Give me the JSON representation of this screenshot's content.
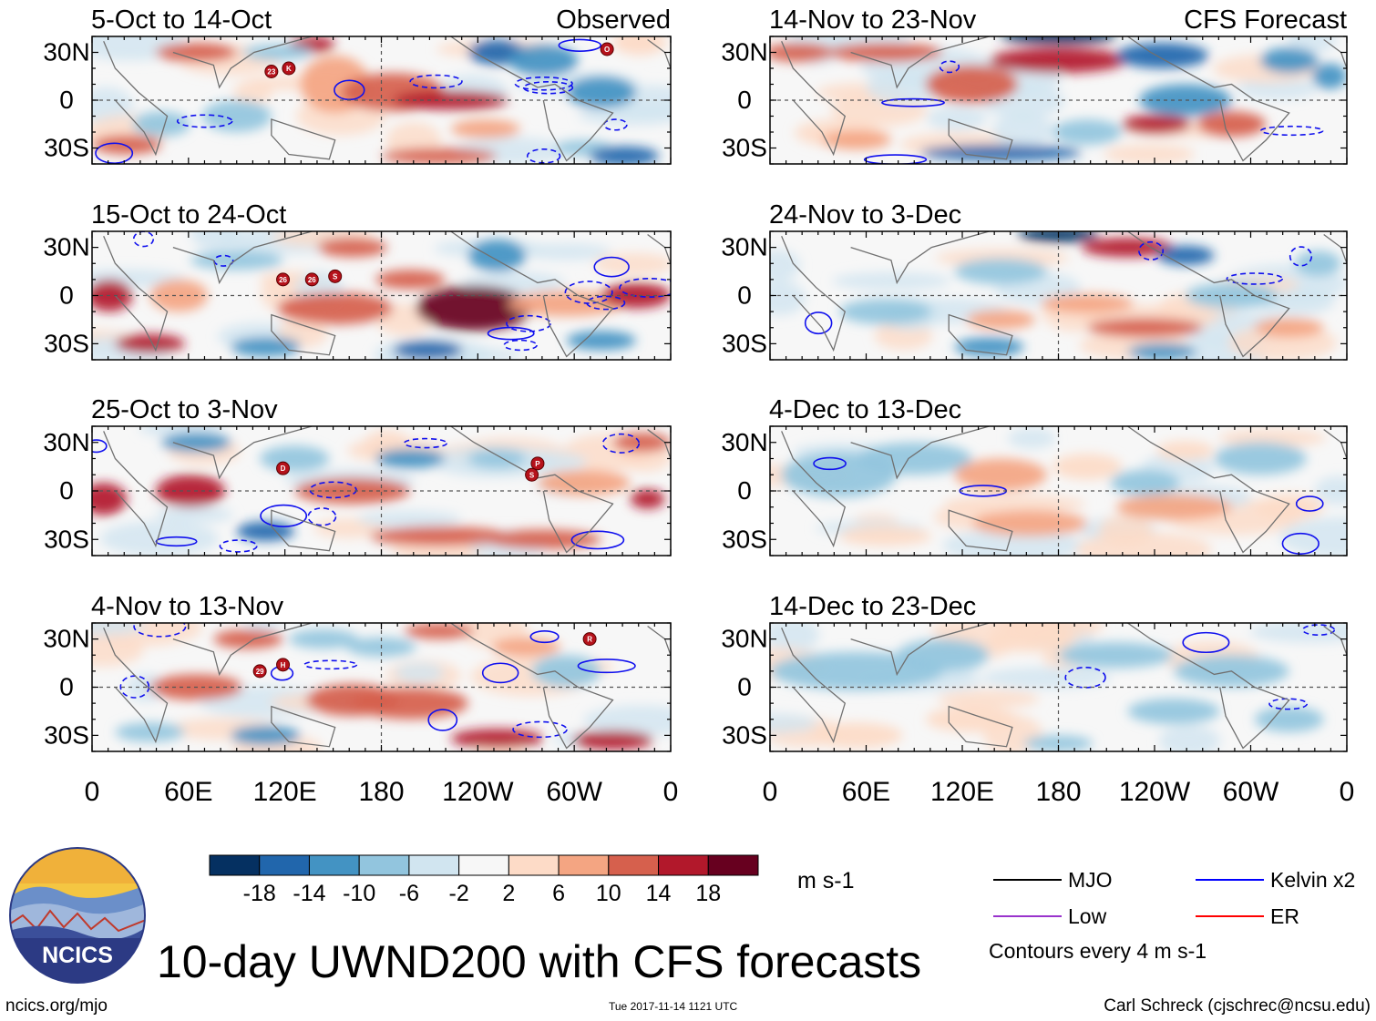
{
  "figure": {
    "title": "10-day UWND200 with CFS forecasts",
    "logo_text": "NCICS",
    "site_url": "ncics.org/mjo",
    "timestamp": "Tue 2017-11-14 1121 UTC",
    "author": "Carl Schreck (cjschrec@ncsu.edu)"
  },
  "columns": {
    "left_label": "Observed",
    "right_label": "CFS Forecast"
  },
  "colorbar": {
    "unit": "m s-1",
    "ticks": [
      "-18",
      "-14",
      "-10",
      "-6",
      "-2",
      "2",
      "6",
      "10",
      "14",
      "18"
    ],
    "colors": [
      "#053061",
      "#2166ac",
      "#4393c3",
      "#92c5de",
      "#d1e5f0",
      "#f7f7f7",
      "#fddbc7",
      "#f4a582",
      "#d6604d",
      "#b2182b",
      "#67001f"
    ]
  },
  "legend": {
    "items": [
      {
        "label": "MJO",
        "color": "#000000"
      },
      {
        "label": "Kelvin x2",
        "color": "#0000ff"
      },
      {
        "label": "Low",
        "color": "#9933cc"
      },
      {
        "label": "ER",
        "color": "#ff0000"
      }
    ],
    "note": "Contours every 4 m s-1"
  },
  "chart_data": {
    "type": "heatmap",
    "variable": "200-hPa zonal wind anomaly (UWND200), 10-day means",
    "units": "m s-1",
    "y_ticks": [
      "30N",
      "0",
      "30S"
    ],
    "x_ticks": [
      "0",
      "60E",
      "120E",
      "180",
      "120W",
      "60W",
      "0"
    ],
    "lat_range": [
      -40,
      40
    ],
    "lon_range": [
      0,
      360
    ],
    "panels": [
      {
        "title": "5-Oct to 14-Oct",
        "kind": "observed",
        "storms": [
          "23",
          "K",
          "O"
        ]
      },
      {
        "title": "15-Oct to 24-Oct",
        "kind": "observed",
        "storms": [
          "26",
          "26",
          "S"
        ]
      },
      {
        "title": "25-Oct to 3-Nov",
        "kind": "observed",
        "storms": [
          "D",
          "P",
          "S"
        ]
      },
      {
        "title": "4-Nov to 13-Nov",
        "kind": "observed",
        "storms": [
          "29",
          "H",
          "R"
        ]
      },
      {
        "title": "14-Nov to 23-Nov",
        "kind": "forecast",
        "storms": []
      },
      {
        "title": "24-Nov to 3-Dec",
        "kind": "forecast",
        "storms": []
      },
      {
        "title": "4-Dec to 13-Dec",
        "kind": "forecast",
        "storms": []
      },
      {
        "title": "14-Dec to 23-Dec",
        "kind": "forecast",
        "storms": []
      }
    ]
  }
}
